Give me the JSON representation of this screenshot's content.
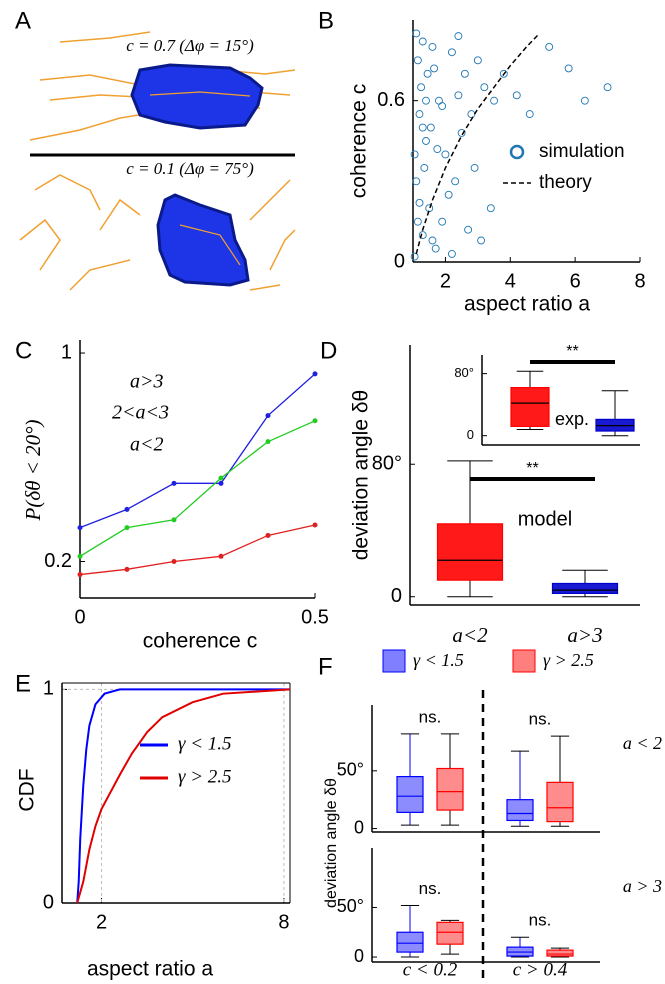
{
  "chart_data": [
    {
      "type": "illustration",
      "label": "A",
      "annotations": [
        "c = 0.7 (Δφ = 15°)",
        "c = 0.1 (Δφ = 75°)"
      ]
    },
    {
      "type": "scatter",
      "label": "B",
      "xlabel": "aspect ratio a",
      "ylabel": "coherence c",
      "xlim": [
        1,
        8
      ],
      "ylim": [
        0,
        0.9
      ],
      "xticks": [
        2,
        4,
        6,
        8
      ],
      "yticks": [
        0,
        0.6
      ],
      "series": [
        {
          "name": "simulation",
          "color": "#1f77b4",
          "x": [
            1.05,
            1.1,
            1.2,
            1.15,
            1.3,
            1.4,
            1.25,
            1.5,
            1.6,
            1.35,
            1.8,
            1.7,
            1.45,
            2.0,
            1.9,
            2.2,
            1.55,
            2.4,
            2.1,
            1.65,
            2.6,
            2.3,
            2.8,
            1.75,
            3.0,
            2.5,
            3.2,
            2.7,
            3.5,
            1.1,
            1.2,
            1.3,
            1.05,
            1.4,
            2.9,
            3.8,
            4.2,
            3.4,
            4.6,
            5.2,
            6.3,
            5.8,
            7.0,
            3.1,
            2.2,
            1.6,
            1.9,
            2.4,
            1.3,
            1.15
          ],
          "y": [
            0.02,
            0.3,
            0.55,
            0.75,
            0.1,
            0.45,
            0.65,
            0.2,
            0.8,
            0.35,
            0.6,
            0.05,
            0.7,
            0.4,
            0.15,
            0.78,
            0.5,
            0.62,
            0.25,
            0.72,
            0.7,
            0.3,
            0.55,
            0.42,
            0.75,
            0.48,
            0.65,
            0.12,
            0.6,
            0.85,
            0.22,
            0.82,
            0.4,
            0.6,
            0.35,
            0.7,
            0.62,
            0.2,
            0.55,
            0.8,
            0.6,
            0.72,
            0.65,
            0.08,
            0.03,
            0.08,
            0.58,
            0.84,
            0.5,
            0.15
          ]
        },
        {
          "name": "theory",
          "color": "#000000",
          "style": "dashed",
          "x": [
            1.1,
            1.3,
            1.6,
            2.0,
            2.5,
            3.0,
            3.5,
            4.0,
            4.5,
            4.9
          ],
          "y": [
            0.03,
            0.12,
            0.23,
            0.35,
            0.47,
            0.57,
            0.65,
            0.73,
            0.8,
            0.85
          ]
        }
      ]
    },
    {
      "type": "line",
      "label": "C",
      "xlabel": "coherence c",
      "ylabel": "P(δθ < 20°)",
      "markers": true,
      "x": [
        0,
        0.1,
        0.2,
        0.3,
        0.4,
        0.5
      ],
      "xlim": [
        0,
        0.5
      ],
      "ylim": [
        0.06,
        1.05
      ],
      "xticks": [
        0,
        0.5
      ],
      "yticks": [
        0.2,
        1
      ],
      "series": [
        {
          "name": "a>3",
          "color": "#2020e0",
          "values": [
            0.33,
            0.4,
            0.5,
            0.5,
            0.76,
            0.92
          ]
        },
        {
          "name": "2<a<3",
          "color": "#22cc22",
          "values": [
            0.22,
            0.33,
            0.36,
            0.52,
            0.66,
            0.74
          ]
        },
        {
          "name": "a<2",
          "color": "#e02020",
          "values": [
            0.15,
            0.17,
            0.2,
            0.22,
            0.3,
            0.34
          ]
        }
      ]
    },
    {
      "type": "box",
      "label": "D",
      "ylabel": "deviation angle δθ",
      "categories": [
        "a<2",
        "a>3"
      ],
      "colors": [
        "#ff0000",
        "#0000cc"
      ],
      "ylim": [
        -5,
        152
      ],
      "yticks": [
        0,
        {
          "value": 80,
          "label": "80°"
        }
      ],
      "boxes": [
        {
          "low": 0,
          "q1": 10,
          "median": 22,
          "q3": 44,
          "high": 82
        },
        {
          "low": 0,
          "q1": 2,
          "median": 4,
          "q3": 8,
          "high": 16
        }
      ],
      "annotation": "model",
      "significance": "**",
      "inset": {
        "annotation": "exp.",
        "significance": "**",
        "ylim": [
          -12,
          104
        ],
        "yticks": [
          0,
          {
            "value": 80,
            "label": "80°"
          }
        ],
        "boxes": [
          {
            "low": 8,
            "q1": 12,
            "median": 42,
            "q3": 62,
            "high": 83
          },
          {
            "low": 0,
            "q1": 6,
            "median": 13,
            "q3": 21,
            "high": 58
          }
        ]
      }
    },
    {
      "type": "line",
      "label": "E",
      "xlabel": "aspect ratio a",
      "ylabel": "CDF",
      "grid": true,
      "xlim": [
        0.7,
        8.2
      ],
      "ylim": [
        0,
        1.03
      ],
      "xticks": [
        2,
        8
      ],
      "yticks": [
        0,
        1
      ],
      "series": [
        {
          "name": "γ < 1.5",
          "color": "#0000ff",
          "x": [
            1.2,
            1.25,
            1.3,
            1.4,
            1.5,
            1.6,
            1.8,
            2.1,
            2.6,
            8.2
          ],
          "values": [
            0,
            0.1,
            0.3,
            0.55,
            0.72,
            0.83,
            0.93,
            0.98,
            1,
            1
          ]
        },
        {
          "name": "γ > 2.5",
          "color": "#e00000",
          "x": [
            1.2,
            1.4,
            1.6,
            1.8,
            2.0,
            2.3,
            2.6,
            3.0,
            3.5,
            4.0,
            5.0,
            6.0,
            8.2
          ],
          "values": [
            0,
            0.1,
            0.25,
            0.36,
            0.44,
            0.52,
            0.6,
            0.7,
            0.8,
            0.87,
            0.94,
            0.98,
            1
          ]
        }
      ]
    },
    {
      "type": "grouped-box",
      "label": "F",
      "ylabel": "deviation angle δθ",
      "categories": [
        "c < 0.2",
        "c > 0.4"
      ],
      "series": [
        {
          "name": "γ < 1.5",
          "color": "#0000ff"
        },
        {
          "name": "γ > 2.5",
          "color": "#ff0000"
        }
      ],
      "rows": [
        {
          "label": "a < 2",
          "ylim": [
            -3,
            107
          ],
          "yticks": [
            0,
            {
              "value": 50,
              "label": "50°"
            }
          ],
          "annotations": [
            "ns.",
            "ns."
          ],
          "boxes": [
            [
              {
                "low": 3,
                "q1": 14,
                "median": 28,
                "q3": 45,
                "high": 82
              },
              {
                "low": 2,
                "q1": 7,
                "median": 13,
                "q3": 25,
                "high": 67
              }
            ],
            [
              {
                "low": 3,
                "q1": 16,
                "median": 32,
                "q3": 52,
                "high": 82
              },
              {
                "low": 2,
                "q1": 6,
                "median": 18,
                "q3": 40,
                "high": 80
              }
            ]
          ]
        },
        {
          "label": "a > 3",
          "ylim": [
            -5,
            110
          ],
          "yticks": [
            0,
            {
              "value": 50,
              "label": "50°"
            }
          ],
          "annotations": [
            "ns.",
            "ns."
          ],
          "boxes": [
            [
              {
                "low": 0,
                "q1": 5,
                "median": 14,
                "q3": 25,
                "high": 52
              },
              {
                "low": 0,
                "q1": 1,
                "median": 5,
                "q3": 10,
                "high": 20
              }
            ],
            [
              {
                "low": 3,
                "q1": 13,
                "median": 25,
                "q3": 35,
                "high": 37
              },
              {
                "low": 0,
                "q1": 1,
                "median": 3,
                "q3": 7,
                "high": 9
              }
            ]
          ]
        }
      ]
    }
  ]
}
